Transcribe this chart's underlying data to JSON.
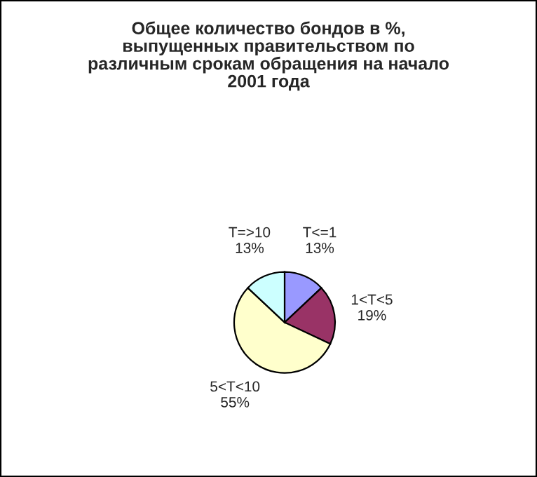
{
  "chart_data": {
    "type": "pie",
    "title": "Общее количество бондов в %,\nвыпущенных правительством по\nразличным срокам обращения на начало\n2001 года",
    "categories": [
      "T<=1",
      "1<T<5",
      "5<T<10",
      "T=>10"
    ],
    "values": [
      13,
      19,
      55,
      13
    ],
    "value_labels": [
      "13%",
      "19%",
      "55%",
      "13%"
    ],
    "colors": [
      "#9999ff",
      "#993366",
      "#ffffcc",
      "#ccffff"
    ],
    "legend": false
  }
}
